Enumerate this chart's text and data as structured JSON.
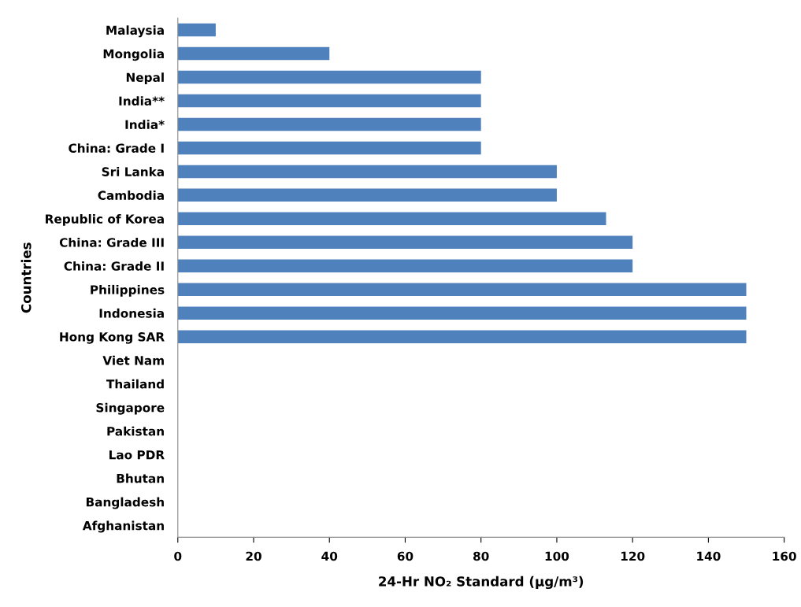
{
  "chart_data": {
    "type": "bar",
    "orientation": "horizontal",
    "categories": [
      "Malaysia",
      "Mongolia",
      "Nepal",
      "India**",
      "India*",
      "China: Grade I",
      "Sri Lanka",
      "Cambodia",
      "Republic of Korea",
      "China: Grade III",
      "China: Grade II",
      "Philippines",
      "Indonesia",
      "Hong Kong SAR",
      "Viet Nam",
      "Thailand",
      "Singapore",
      "Pakistan",
      "Lao PDR",
      "Bhutan",
      "Bangladesh",
      "Afghanistan"
    ],
    "values": [
      10,
      40,
      80,
      80,
      80,
      80,
      100,
      100,
      113,
      120,
      120,
      150,
      150,
      150,
      null,
      null,
      null,
      null,
      null,
      null,
      null,
      null
    ],
    "color": "#4f81bd",
    "xlabel": "24-Hr NO₂ Standard (µg/m³)",
    "ylabel": "Countries",
    "xlim": [
      0,
      160
    ],
    "xticks": [
      0,
      20,
      40,
      60,
      80,
      100,
      120,
      140,
      160
    ],
    "grid": false
  }
}
